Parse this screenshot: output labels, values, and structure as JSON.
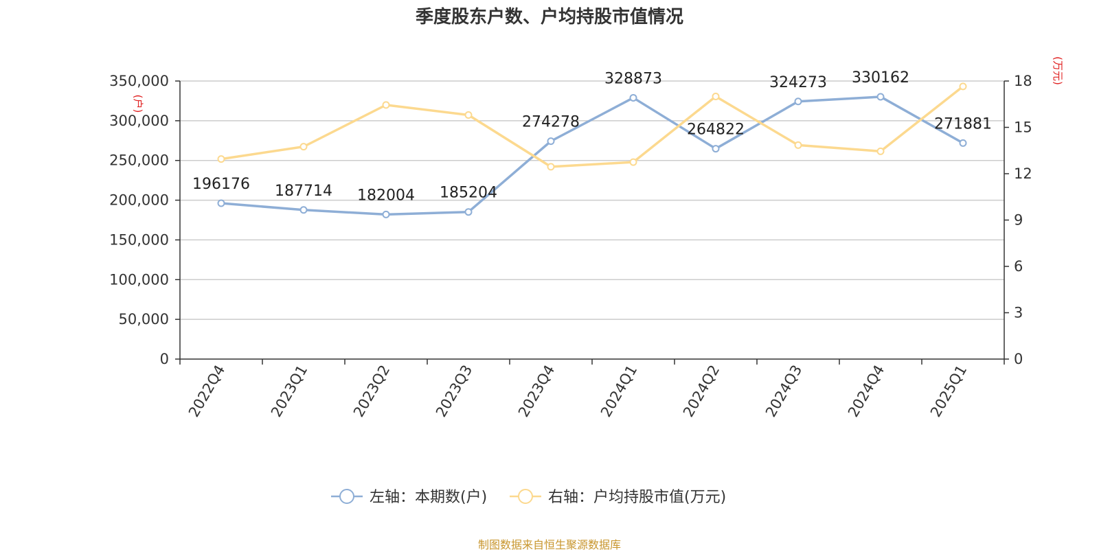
{
  "title": "季度股东户数、户均持股市值情况",
  "source": "制图数据来自恒生聚源数据库",
  "chart_data": {
    "type": "line",
    "categories": [
      "2022Q4",
      "2023Q1",
      "2023Q2",
      "2023Q3",
      "2023Q4",
      "2024Q1",
      "2024Q2",
      "2024Q3",
      "2024Q4",
      "2025Q1"
    ],
    "series": [
      {
        "name": "左轴：本期数(户)",
        "axis": "left",
        "color": "#8eaed6",
        "values": [
          196176,
          187714,
          182004,
          185204,
          274278,
          328873,
          264822,
          324273,
          330162,
          271881
        ],
        "labels": [
          "196176",
          "187714",
          "182004",
          "185204",
          "274278",
          "328873",
          "264822",
          "324273",
          "330162",
          "271881"
        ]
      },
      {
        "name": "右轴：户均持股市值(万元)",
        "axis": "right",
        "color": "#fcd98f",
        "values": [
          12.95,
          13.75,
          16.45,
          15.8,
          12.45,
          12.75,
          17.0,
          13.85,
          13.45,
          17.65
        ]
      }
    ],
    "left_axis": {
      "unit": "(户)",
      "ylim": [
        0,
        350000
      ],
      "ticks": [
        0,
        50000,
        100000,
        150000,
        200000,
        250000,
        300000,
        350000
      ],
      "tick_labels": [
        "0",
        "50,000",
        "100,000",
        "150,000",
        "200,000",
        "250,000",
        "300,000",
        "350,000"
      ]
    },
    "right_axis": {
      "unit": "(万元)",
      "ylim": [
        0,
        18
      ],
      "ticks": [
        0,
        3,
        6,
        9,
        12,
        15,
        18
      ],
      "tick_labels": [
        "0",
        "3",
        "6",
        "9",
        "12",
        "15",
        "18"
      ]
    },
    "grid": true,
    "legend_position": "bottom"
  }
}
